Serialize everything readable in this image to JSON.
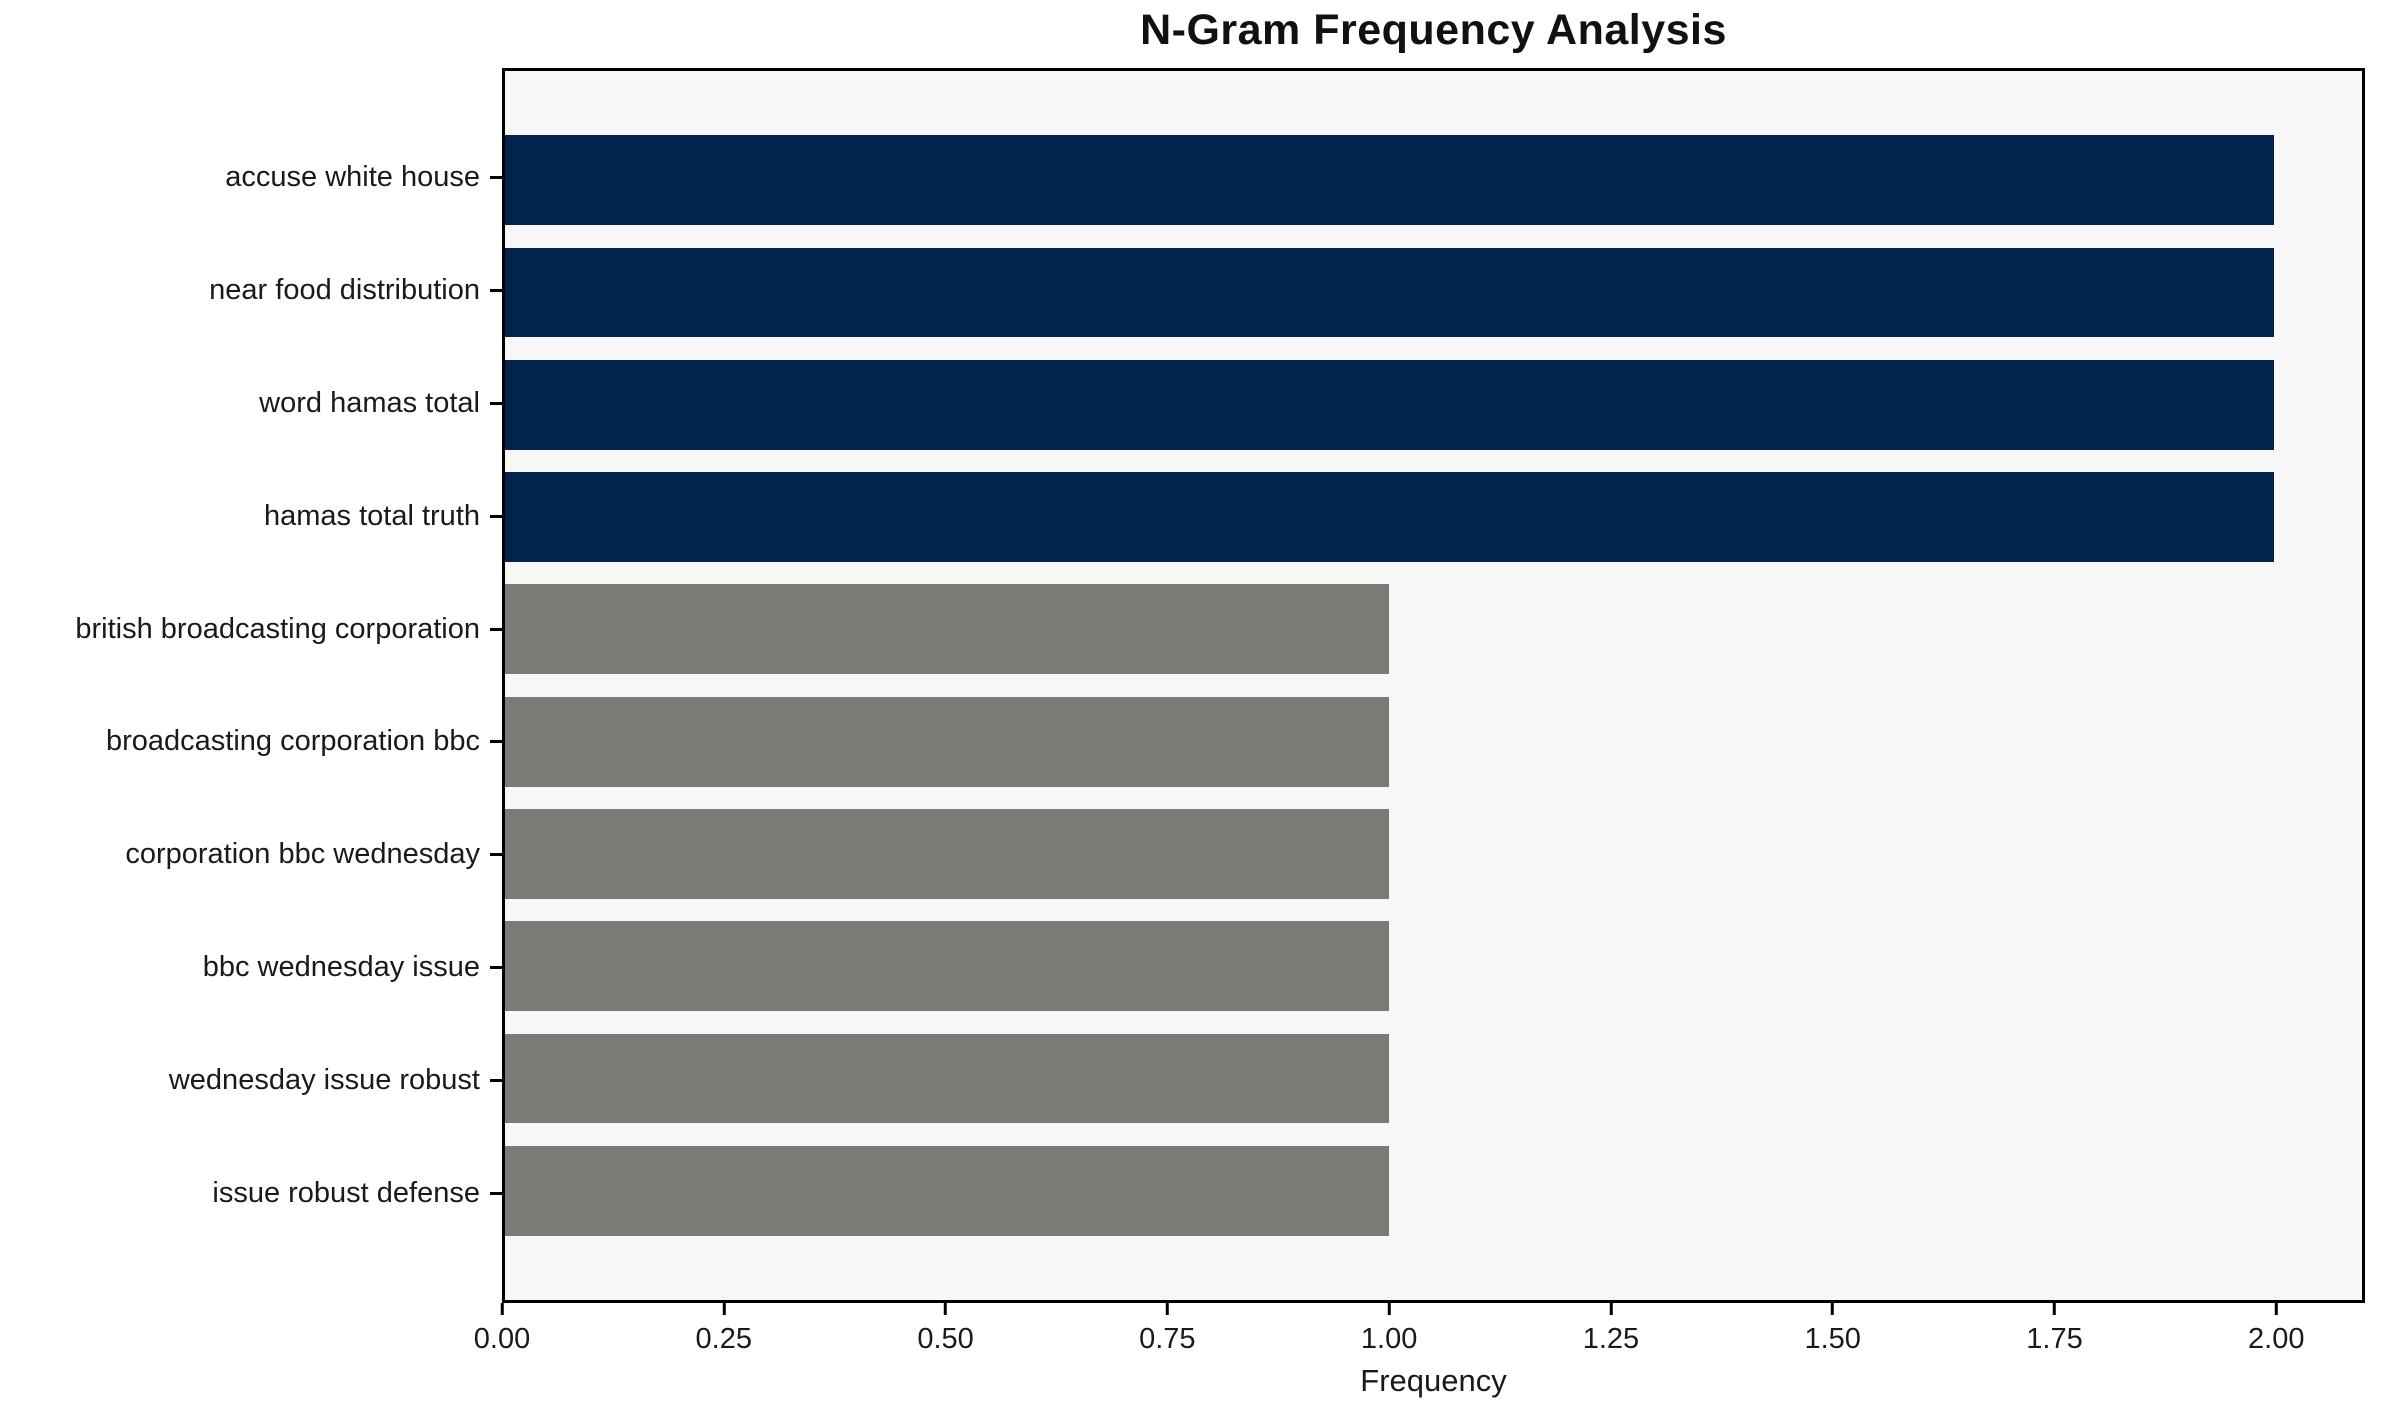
{
  "chart_data": {
    "type": "bar",
    "orientation": "horizontal",
    "title": "N-Gram Frequency Analysis",
    "xlabel": "Frequency",
    "ylabel": "",
    "categories": [
      "accuse white house",
      "near food distribution",
      "word hamas total",
      "hamas total truth",
      "british broadcasting corporation",
      "broadcasting corporation bbc",
      "corporation bbc wednesday",
      "bbc wednesday issue",
      "wednesday issue robust",
      "issue robust defense"
    ],
    "values": [
      2,
      2,
      2,
      2,
      1,
      1,
      1,
      1,
      1,
      1
    ],
    "bar_colors": [
      "#02234c",
      "#02234c",
      "#02234c",
      "#02234c",
      "#7b7b76",
      "#7b7b76",
      "#7b7b76",
      "#7b7b76",
      "#7b7b76",
      "#7b7b76"
    ],
    "xlim": [
      0,
      2.1
    ],
    "xticks": [
      0,
      0.25,
      0.5,
      0.75,
      1.0,
      1.25,
      1.5,
      1.75,
      2.0
    ],
    "xtick_labels": [
      "0.00",
      "0.25",
      "0.50",
      "0.75",
      "1.00",
      "1.25",
      "1.50",
      "1.75",
      "2.00"
    ],
    "grid": false,
    "legend": null,
    "colors": {
      "highlight_bar": "#02234c",
      "default_bar": "#7b7b76",
      "plot_background": "#f7f7f7",
      "figure_background": "#ffffff",
      "spine": "#000000",
      "text": "#1a1a1a"
    }
  }
}
